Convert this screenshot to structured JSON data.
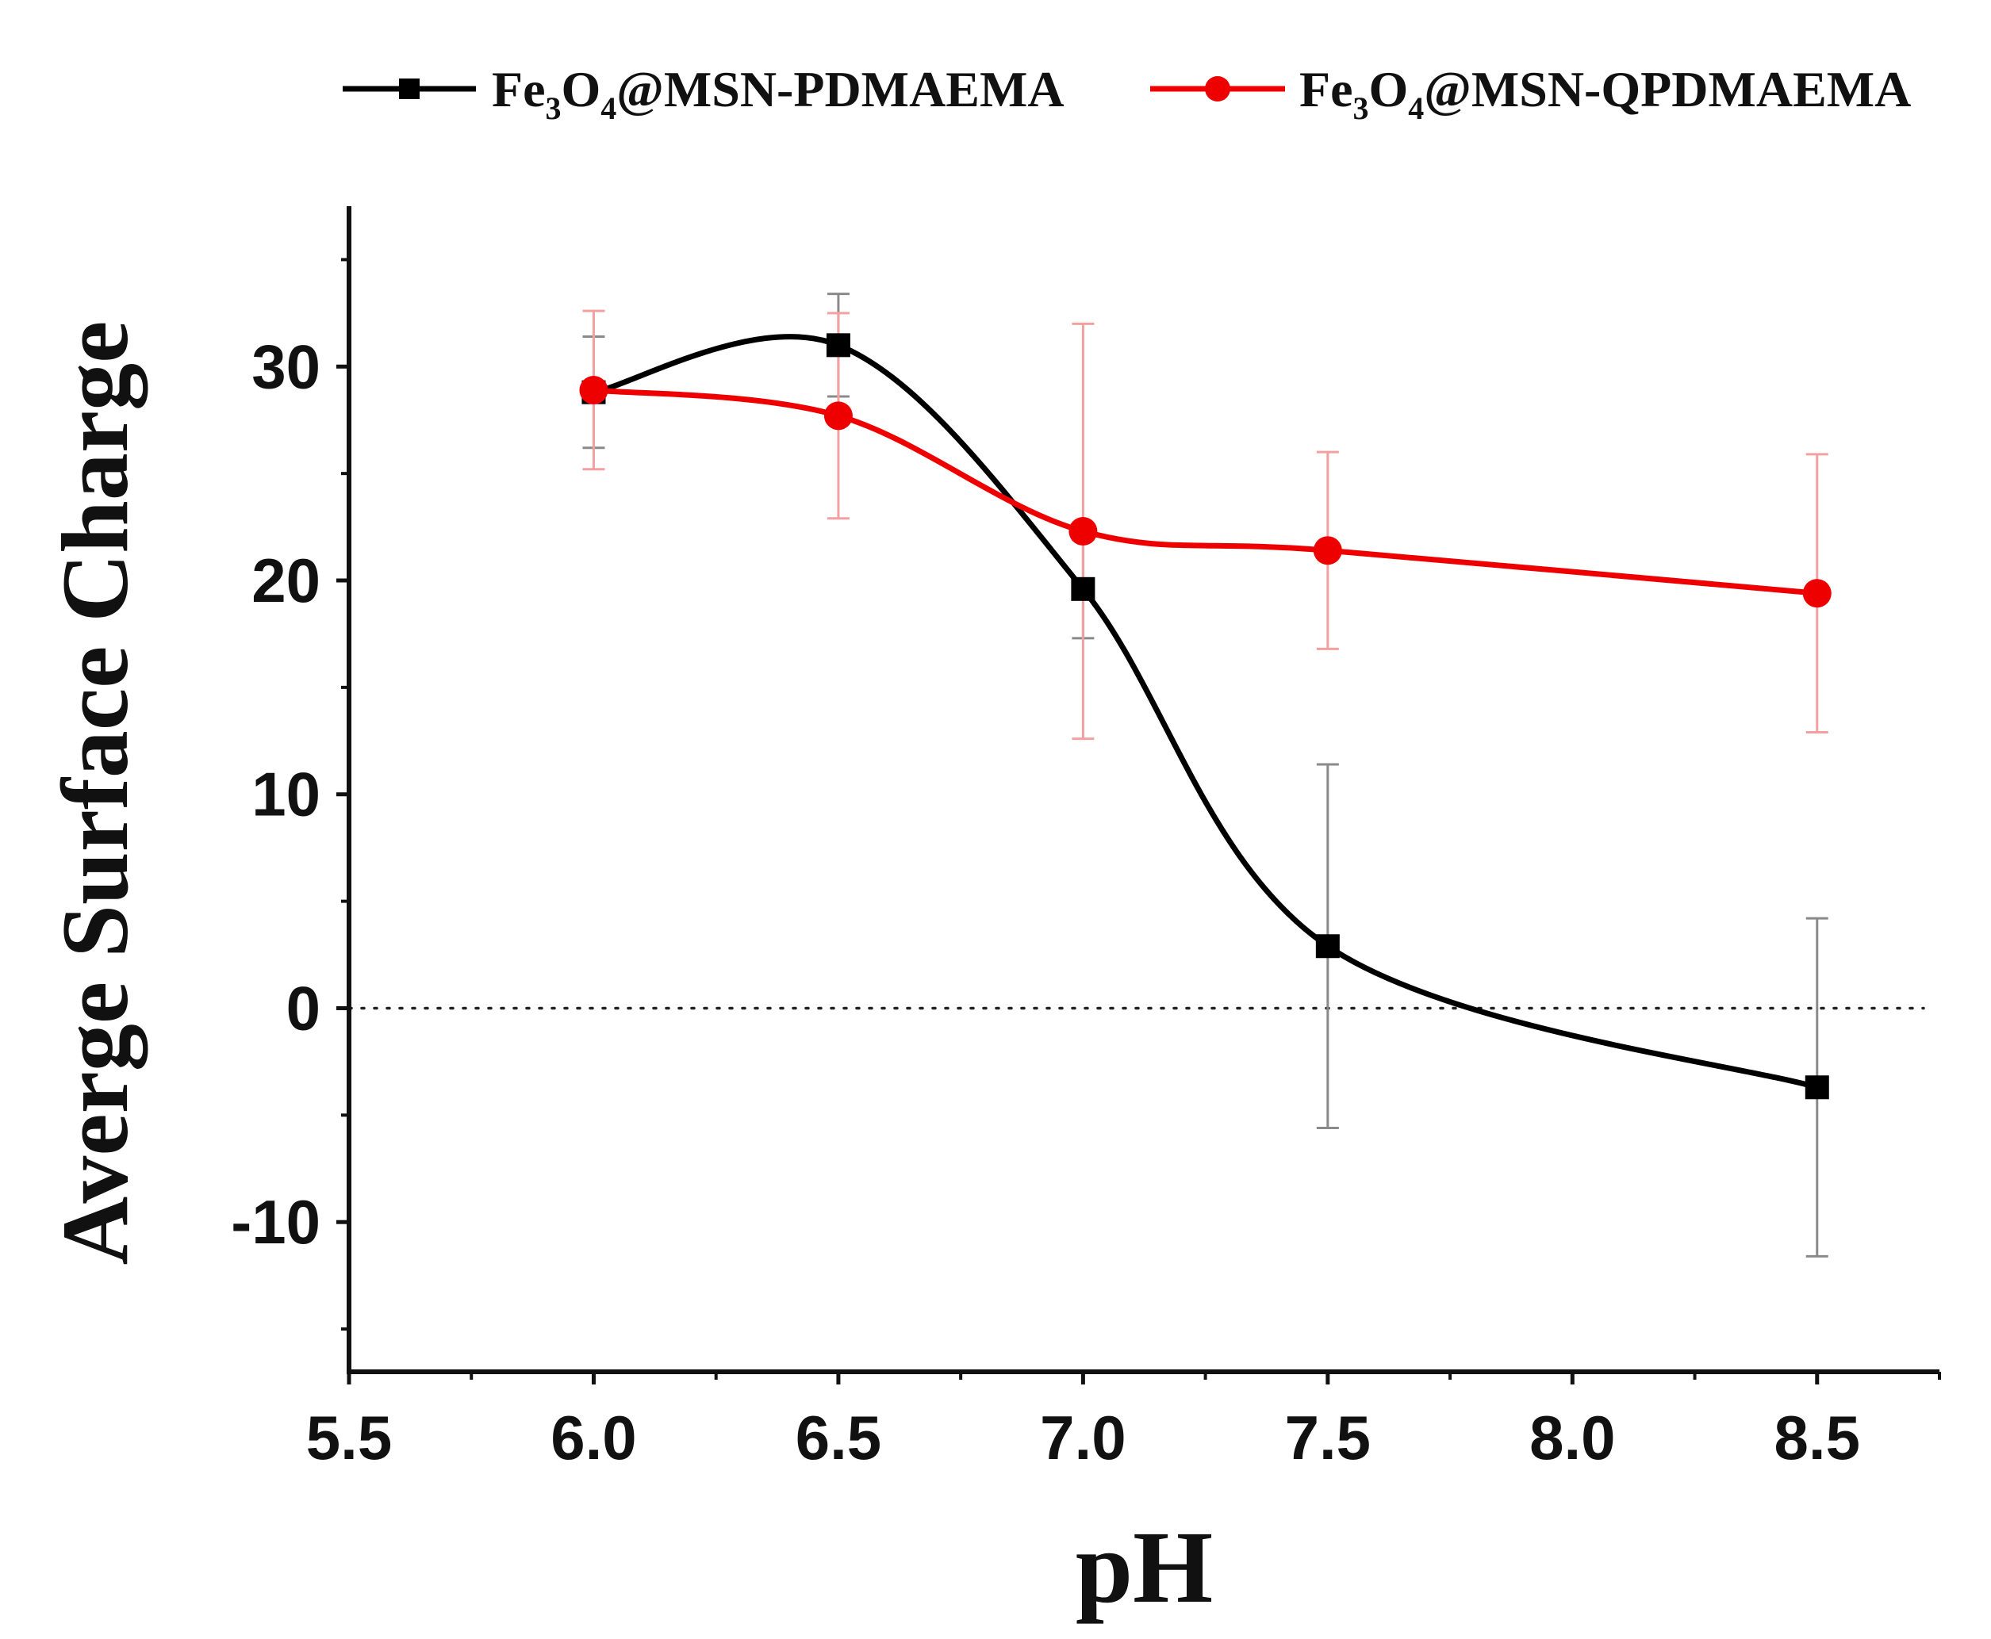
{
  "chart_data": {
    "type": "line",
    "title": "",
    "xlabel": "pH",
    "ylabel": "Averge Surface Charge",
    "xlim": [
      5.5,
      8.75
    ],
    "ylim": [
      -17,
      37.5
    ],
    "xticks": [
      "5.5",
      "6.0",
      "6.5",
      "7.0",
      "7.5",
      "8.0",
      "8.5"
    ],
    "yticks": [
      "-10",
      "0",
      "10",
      "20",
      "30"
    ],
    "reference_line": {
      "y": 0,
      "style": "dotted"
    },
    "legend": {
      "placement": "top",
      "entries": [
        {
          "formula_prefix": "Fe",
          "sub1": "3",
          "mid": "O",
          "sub2": "4",
          "suffix": "@MSN-PDMAEMA"
        },
        {
          "formula_prefix": "Fe",
          "sub1": "3",
          "mid": "O",
          "sub2": "4",
          "suffix": "@MSN-QPDMAEMA"
        }
      ]
    },
    "series": [
      {
        "name": "Fe3O4@MSN-PDMAEMA",
        "color": "#000000",
        "marker": "square",
        "x": [
          6.0,
          6.5,
          7.0,
          7.5,
          8.5
        ],
        "y": [
          28.8,
          31.0,
          19.6,
          2.9,
          -3.7
        ],
        "error": [
          2.6,
          2.4,
          2.3,
          8.5,
          7.9
        ]
      },
      {
        "name": "Fe3O4@MSN-QPDMAEMA",
        "color": "#ee0000",
        "marker": "circle",
        "x": [
          6.0,
          6.5,
          7.0,
          7.5,
          8.5
        ],
        "y": [
          28.9,
          27.7,
          22.3,
          21.4,
          19.4
        ],
        "error": [
          3.7,
          4.8,
          9.7,
          4.6,
          6.5
        ]
      }
    ]
  }
}
